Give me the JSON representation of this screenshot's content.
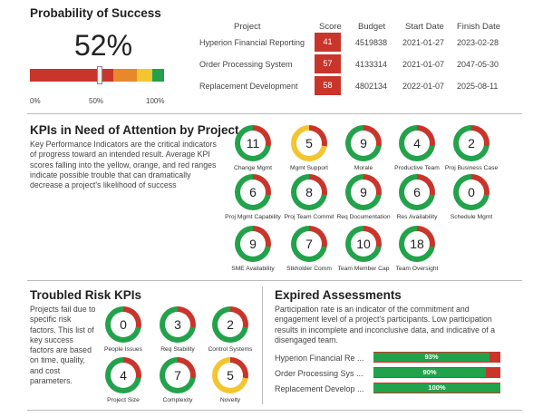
{
  "probability": {
    "title": "Probability of Success",
    "value": "52%",
    "pointer_fraction": 0.52,
    "scale_labels": [
      "0%",
      "50%",
      "100%"
    ]
  },
  "projects_table": {
    "headers": [
      "Project",
      "Score",
      "Budget",
      "Start Date",
      "Finish Date"
    ],
    "rows": [
      {
        "name": "Hyperion Financial Reporting",
        "score": "41",
        "budget": "4519838",
        "start": "2021-01-27",
        "finish": "2023-02-28"
      },
      {
        "name": "Order Processing System",
        "score": "57",
        "budget": "4133314",
        "start": "2021-01-07",
        "finish": "2047-05-30"
      },
      {
        "name": "Replacement Development",
        "score": "58",
        "budget": "4802134",
        "start": "2022-01-07",
        "finish": "2025-08-11"
      }
    ]
  },
  "kpis": {
    "title": "KPIs in Need of Attention by Project",
    "description": "Key Performance Indicators are the critical indicators of progress toward an intended result. Average KPI scores falling into the yellow, orange, and red ranges indicate possible trouble that can dramatically decrease a project's likelihood of success",
    "items": [
      {
        "value": "11",
        "label": "Change Mgmt",
        "ring": "green"
      },
      {
        "value": "5",
        "label": "Mgmt Support",
        "ring": "yellow"
      },
      {
        "value": "9",
        "label": "Morale",
        "ring": "green"
      },
      {
        "value": "4",
        "label": "Productive Team",
        "ring": "green"
      },
      {
        "value": "2",
        "label": "Proj Business Case",
        "ring": "green"
      },
      {
        "value": "6",
        "label": "Proj Mgmt Capability",
        "ring": "green"
      },
      {
        "value": "8",
        "label": "Proj Team Commit",
        "ring": "green"
      },
      {
        "value": "9",
        "label": "Req Documentation",
        "ring": "green"
      },
      {
        "value": "6",
        "label": "Res Availability",
        "ring": "green"
      },
      {
        "value": "0",
        "label": "Schedule Mgmt",
        "ring": "green"
      },
      {
        "value": "9",
        "label": "SME Availability",
        "ring": "green"
      },
      {
        "value": "7",
        "label": "Stkholder Comm",
        "ring": "green"
      },
      {
        "value": "10",
        "label": "Team Member Cap",
        "ring": "green"
      },
      {
        "value": "18",
        "label": "Team Oversight",
        "ring": "green"
      }
    ]
  },
  "troubled": {
    "title": "Troubled Risk KPIs",
    "description": "Projects fail due to specific risk factors. This list of key success factors are based on time, quality, and cost parameters.",
    "items": [
      {
        "value": "0",
        "label": "People Issues",
        "ring": "green"
      },
      {
        "value": "3",
        "label": "Req Stability",
        "ring": "green"
      },
      {
        "value": "2",
        "label": "Control Systems",
        "ring": "green"
      },
      {
        "value": "4",
        "label": "Project Size",
        "ring": "green"
      },
      {
        "value": "7",
        "label": "Complexity",
        "ring": "green"
      },
      {
        "value": "5",
        "label": "Novelty",
        "ring": "yellow"
      }
    ]
  },
  "expired": {
    "title": "Expired Assessments",
    "description": "Participation rate is an indicator of the commitment and engagement level of a project's participants. Low participation results in incomplete and inconclusive data, and indicative of a disengaged team.",
    "rows": [
      {
        "name": "Hyperion Financial Re ...",
        "percent": "93%",
        "fraction": 0.93
      },
      {
        "name": "Order Processing Sys ...",
        "percent": "90%",
        "fraction": 0.9
      },
      {
        "name": "Replacement Develop ...",
        "percent": "100%",
        "fraction": 1.0
      }
    ]
  },
  "colors": {
    "red": "#c9352b",
    "orange": "#e8882a",
    "yellow": "#f3c531",
    "green": "#22a24a"
  }
}
